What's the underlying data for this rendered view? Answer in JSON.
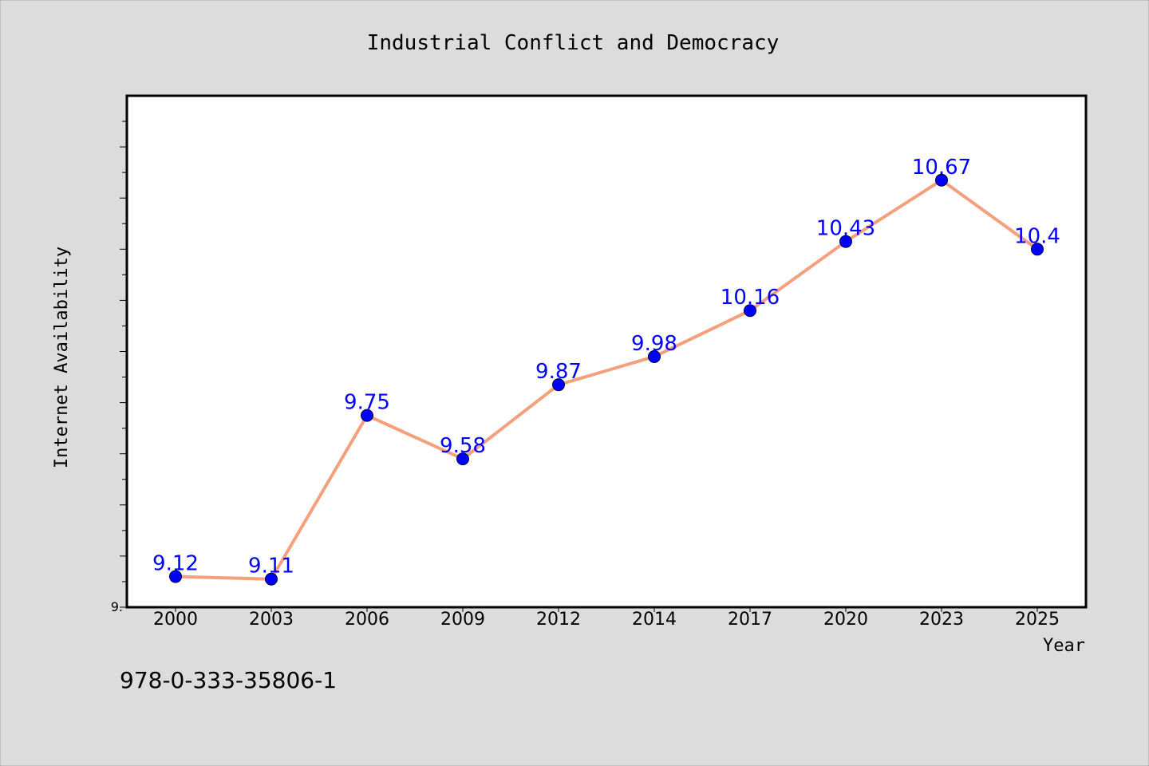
{
  "chart_data": {
    "type": "line",
    "title": "Industrial Conflict and Democracy",
    "xlabel": "Year",
    "ylabel": "Internet Availability",
    "categories": [
      "2000",
      "2003",
      "2006",
      "2009",
      "2012",
      "2014",
      "2017",
      "2020",
      "2023",
      "2025"
    ],
    "series": [
      {
        "values": [
          9.12,
          9.11,
          9.75,
          9.58,
          9.87,
          9.98,
          10.16,
          10.43,
          10.67,
          10.4
        ],
        "data_labels": [
          "9.12",
          "9.11",
          "9.75",
          "9.58",
          "9.87",
          "9.98",
          "10.16",
          "10.43",
          "10.67",
          "10.4"
        ]
      }
    ],
    "ylim": [
      9.0,
      11.0
    ],
    "y_tick_labels": [
      "9."
    ],
    "grid": false,
    "line_color": "#f4a07c",
    "marker_color": "#0000ff",
    "label_color": "#0000ff",
    "background_color": "#dcdcdc",
    "plot_background_color": "#ffffff"
  },
  "footer": {
    "isbn": "978-0-333-35806-1"
  }
}
